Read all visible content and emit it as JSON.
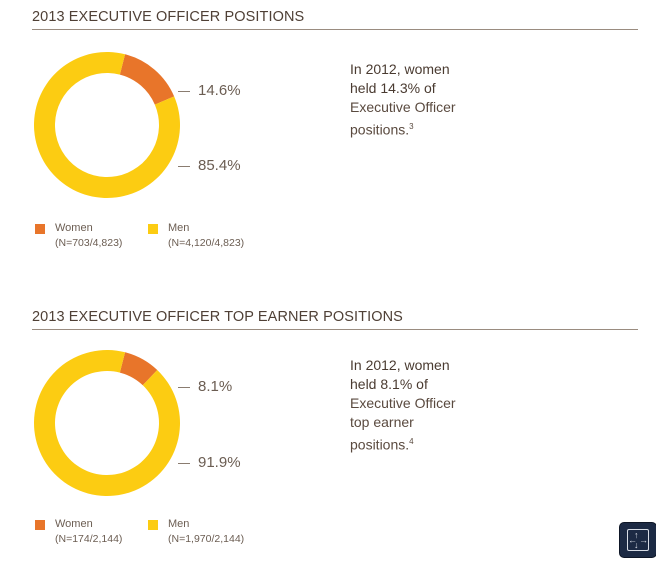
{
  "charts": [
    {
      "title": "2013 EXECUTIVE OFFICER POSITIONS",
      "note": {
        "l1": "In 2012, women",
        "l2": "held 14.3% of",
        "l3": "Executive Officer",
        "l4": "positions.",
        "sup": "3"
      },
      "legend": {
        "women_label": "Women",
        "women_n": "(N=703/4,823)",
        "men_label": "Men",
        "men_n": "(N=4,120/4,823)"
      }
    },
    {
      "title": "2013 EXECUTIVE OFFICER TOP EARNER POSITIONS",
      "note": {
        "l1": "In 2012, women",
        "l2": "held 8.1% of",
        "l3": "Executive Officer",
        "l4": "top earner",
        "l5": "positions.",
        "sup": "4"
      },
      "legend": {
        "women_label": "Women",
        "women_n": "(N=174/2,144)",
        "men_label": "Men",
        "men_n": "(N=1,970/2,144)"
      }
    }
  ],
  "colors": {
    "women": "#e8752a",
    "men": "#fccc12"
  },
  "chart_data": [
    {
      "type": "pie",
      "title": "2013 EXECUTIVE OFFICER POSITIONS",
      "categories": [
        "Women",
        "Men"
      ],
      "values": [
        14.6,
        85.4
      ],
      "labels": [
        "14.6%",
        "85.4%"
      ]
    },
    {
      "type": "pie",
      "title": "2013 EXECUTIVE OFFICER TOP EARNER POSITIONS",
      "categories": [
        "Women",
        "Men"
      ],
      "values": [
        8.1,
        91.9
      ],
      "labels": [
        "8.1%",
        "91.9%"
      ]
    }
  ],
  "ui": {
    "expand_icon": "expand-icon"
  }
}
